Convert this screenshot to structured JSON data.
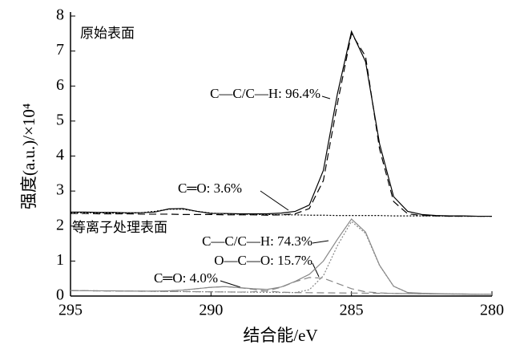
{
  "chart_data": {
    "type": "line",
    "xlabel": "结合能/eV",
    "ylabel": "强度(a.u.)/×10⁴",
    "xlim": [
      295,
      280
    ],
    "ylim": [
      0,
      8
    ],
    "xticks": [
      295,
      290,
      285,
      280
    ],
    "yticks": [
      0,
      1,
      2,
      3,
      4,
      5,
      6,
      7,
      8
    ],
    "x": [
      295,
      294.5,
      294,
      293.5,
      293,
      292.5,
      292,
      291.5,
      291,
      290.5,
      290,
      289.5,
      289,
      288.5,
      288,
      287.5,
      287,
      286.5,
      286,
      285.5,
      285,
      284.5,
      284,
      283.5,
      283,
      282.5,
      282,
      281.5,
      281,
      280.5,
      280
    ],
    "series": [
      {
        "color": "#000000",
        "style": "solid",
        "values": [
          2.4,
          2.4,
          2.39,
          2.39,
          2.38,
          2.38,
          2.4,
          2.49,
          2.5,
          2.42,
          2.36,
          2.36,
          2.35,
          2.35,
          2.35,
          2.37,
          2.42,
          2.6,
          3.59,
          5.78,
          7.56,
          6.7,
          4.35,
          2.84,
          2.42,
          2.33,
          2.3,
          2.29,
          2.29,
          2.28,
          2.28
        ]
      },
      {
        "color": "#000000",
        "style": "dashed",
        "values": [
          2.36,
          2.36,
          2.35,
          2.35,
          2.35,
          2.34,
          2.34,
          2.34,
          2.33,
          2.33,
          2.33,
          2.32,
          2.32,
          2.32,
          2.31,
          2.32,
          2.35,
          2.5,
          3.3,
          5.5,
          7.5,
          6.85,
          4.2,
          2.7,
          2.35,
          2.3,
          2.29,
          2.28,
          2.28,
          2.28,
          2.28
        ]
      },
      {
        "color": "#000000",
        "style": "dotted",
        "values": [
          2.38,
          2.38,
          2.38,
          2.37,
          2.37,
          2.38,
          2.42,
          2.48,
          2.48,
          2.42,
          2.37,
          2.35,
          2.34,
          2.33,
          2.33,
          2.32,
          2.32,
          2.31,
          2.31,
          2.3,
          2.3,
          2.3,
          2.3,
          2.29,
          2.29,
          2.29,
          2.29,
          2.28,
          2.28,
          2.28,
          2.28
        ]
      },
      {
        "color": "#888888",
        "style": "solid",
        "values": [
          0.16,
          0.15,
          0.15,
          0.15,
          0.14,
          0.14,
          0.14,
          0.15,
          0.17,
          0.21,
          0.25,
          0.27,
          0.24,
          0.21,
          0.19,
          0.26,
          0.42,
          0.62,
          1.0,
          1.62,
          2.2,
          1.83,
          0.88,
          0.28,
          0.1,
          0.08,
          0.07,
          0.06,
          0.06,
          0.05,
          0.05
        ]
      },
      {
        "color": "#888888",
        "style": "dotted",
        "values": [
          0.155,
          0.152,
          0.148,
          0.145,
          0.141,
          0.138,
          0.134,
          0.13,
          0.127,
          0.124,
          0.12,
          0.117,
          0.113,
          0.11,
          0.106,
          0.103,
          0.1,
          0.18,
          0.58,
          1.44,
          2.13,
          1.79,
          0.87,
          0.28,
          0.1,
          0.07,
          0.065,
          0.06,
          0.057,
          0.053,
          0.05
        ]
      },
      {
        "color": "#888888",
        "style": "dashed",
        "values": [
          0.155,
          0.152,
          0.148,
          0.145,
          0.141,
          0.138,
          0.134,
          0.13,
          0.127,
          0.124,
          0.12,
          0.117,
          0.113,
          0.12,
          0.15,
          0.25,
          0.41,
          0.53,
          0.51,
          0.36,
          0.21,
          0.12,
          0.09,
          0.075,
          0.07,
          0.065,
          0.06,
          0.057,
          0.053,
          0.05,
          0.05
        ]
      },
      {
        "color": "#888888",
        "style": "dashed",
        "values": [
          0.155,
          0.152,
          0.148,
          0.145,
          0.141,
          0.138,
          0.14,
          0.15,
          0.17,
          0.21,
          0.25,
          0.27,
          0.24,
          0.19,
          0.14,
          0.11,
          0.1,
          0.096,
          0.092,
          0.089,
          0.085,
          0.082,
          0.078,
          0.075,
          0.07,
          0.065,
          0.06,
          0.057,
          0.053,
          0.05,
          0.05
        ]
      }
    ],
    "annotations": [
      "原始表面",
      "等离子处理表面",
      "C—C/C—H: 96.4%",
      "C═O: 3.6%",
      "C—C/C—H: 74.3%",
      "O—C—O: 15.7%",
      "C═O: 4.0%"
    ]
  }
}
